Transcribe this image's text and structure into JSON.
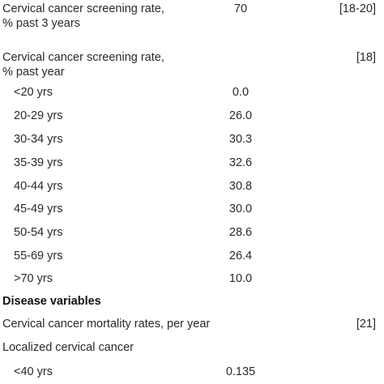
{
  "rows": [
    {
      "label": "Cervical cancer screening rate,",
      "label2": "% past 3 years",
      "value": "70",
      "ref": "[18-20]"
    },
    {
      "label": "Cervical cancer screening rate,",
      "label2": "% past year",
      "value": "",
      "ref": "[18]"
    },
    {
      "label": "<20 yrs",
      "value": "0.0"
    },
    {
      "label": "20-29 yrs",
      "value": "26.0"
    },
    {
      "label": "30-34 yrs",
      "value": "30.3"
    },
    {
      "label": "35-39 yrs",
      "value": "32.6"
    },
    {
      "label": "40-44 yrs",
      "value": "30.8"
    },
    {
      "label": "45-49 yrs",
      "value": "30.0"
    },
    {
      "label": "50-54 yrs",
      "value": "28.6"
    },
    {
      "label": "55-69 yrs",
      "value": "26.4"
    },
    {
      "label": ">70 yrs",
      "value": "10.0"
    },
    {
      "label": "Disease variables"
    },
    {
      "label": "Cervical cancer mortality rates, per year",
      "ref": "[21]"
    },
    {
      "label": "Localized cervical cancer"
    },
    {
      "label": "<40 yrs",
      "value": "0.135"
    }
  ]
}
